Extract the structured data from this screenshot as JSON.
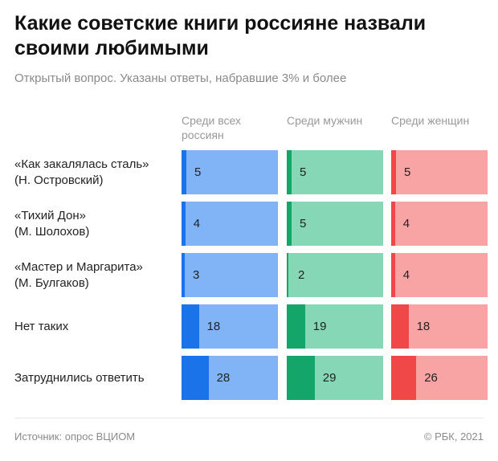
{
  "chart_data": {
    "type": "bar",
    "title": "Какие советские книги россияне назвали своими любимыми",
    "subtitle": "Открытый вопрос. Указаны ответы, набравшие 3% и более",
    "categories": [
      "«Как закалялась сталь»\n(Н. Островский)",
      "«Тихий Дон»\n(М. Шолохов)",
      "«Мастер и Маргарита»\n(М. Булгаков)",
      "Нет таких",
      "Затруднились ответить"
    ],
    "series": [
      {
        "name": "Среди всех россиян",
        "color": "#1a73e8",
        "track_color": "#80b4f7",
        "values": [
          5,
          4,
          3,
          18,
          28
        ]
      },
      {
        "name": "Среди мужчин",
        "color": "#14a56a",
        "track_color": "#86d7b6",
        "values": [
          5,
          5,
          2,
          19,
          29
        ]
      },
      {
        "name": "Среди женщин",
        "color": "#f04848",
        "track_color": "#f8a4a4",
        "values": [
          5,
          4,
          4,
          18,
          26
        ]
      }
    ],
    "xlim": [
      0,
      100
    ],
    "source": "Источник: опрос ВЦИОМ",
    "credit": "© РБК, 2021"
  }
}
